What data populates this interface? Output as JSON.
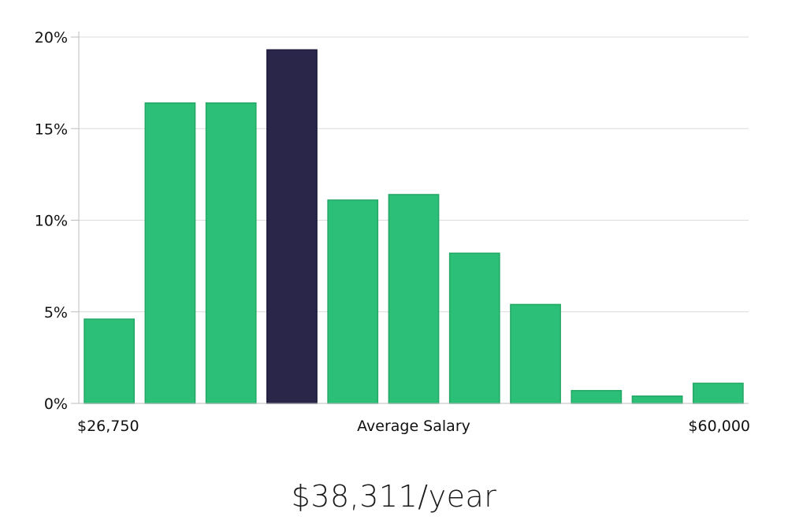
{
  "chart_data": {
    "type": "bar",
    "categories": [
      "$26,750",
      "",
      "",
      "",
      "",
      "",
      "",
      "",
      "",
      "",
      "$60,000"
    ],
    "values": [
      4.6,
      16.4,
      16.4,
      19.3,
      11.1,
      11.4,
      8.2,
      5.4,
      0.7,
      0.4,
      1.1
    ],
    "highlight_index": 3,
    "ylim": [
      0,
      20
    ],
    "yticks": [
      0,
      5,
      10,
      15,
      20
    ],
    "ytick_labels": [
      "0%",
      "5%",
      "10%",
      "15%",
      "20%"
    ],
    "xlabel": "Average Salary",
    "x_min_label": "$26,750",
    "x_max_label": "$60,000",
    "grid": true,
    "colors": {
      "bar": "#2bbf78",
      "bar_border": "#24a866",
      "highlight": "#29264a",
      "highlight_border": "#1c1a3a",
      "grid": "#dcdcdc",
      "axis": "#bdbdbd"
    }
  },
  "headline": "$38,311/year"
}
